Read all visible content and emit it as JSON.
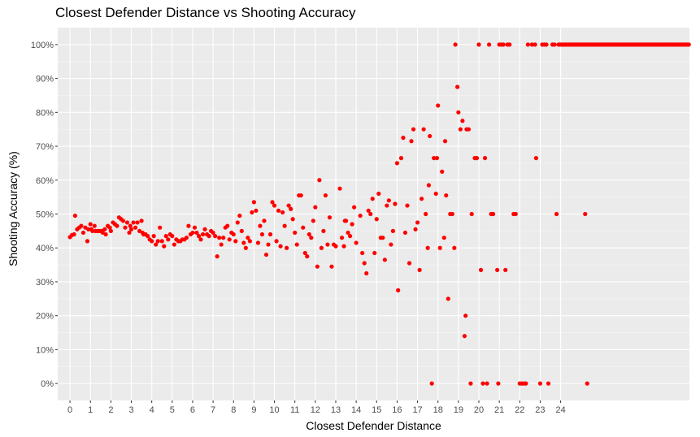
{
  "chart_data": {
    "type": "scatter",
    "title": "Closest Defender Distance vs Shooting Accuracy",
    "xlabel": "Closest Defender Distance",
    "ylabel": "Shooting Accuracy (%)",
    "xlim": [
      -0.6,
      30.3
    ],
    "ylim": [
      -5,
      105
    ],
    "x_ticks": [
      "0",
      "1",
      "2",
      "3",
      "4",
      "5",
      "6",
      "7",
      "8",
      "9",
      "10",
      "11",
      "12",
      "13",
      "14",
      "15",
      "16",
      "17",
      "18",
      "19",
      "20",
      "21",
      "22",
      "23",
      "24"
    ],
    "y_ticks": [
      "0%",
      "10%",
      "20%",
      "30%",
      "40%",
      "50%",
      "60%",
      "70%",
      "80%",
      "90%",
      "100%"
    ],
    "point_color": "#ff0000",
    "panel_background": "#ebebeb",
    "grid": true,
    "points": [
      [
        0.0,
        43.2
      ],
      [
        0.1,
        43.8
      ],
      [
        0.2,
        44.0
      ],
      [
        0.25,
        49.5
      ],
      [
        0.35,
        45.5
      ],
      [
        0.45,
        46.0
      ],
      [
        0.55,
        46.5
      ],
      [
        0.65,
        44.5
      ],
      [
        0.75,
        46.0
      ],
      [
        0.85,
        42.0
      ],
      [
        0.9,
        45.5
      ],
      [
        1.0,
        47.0
      ],
      [
        1.05,
        45.5
      ],
      [
        1.1,
        45.0
      ],
      [
        1.2,
        46.5
      ],
      [
        1.25,
        45.0
      ],
      [
        1.35,
        45.0
      ],
      [
        1.45,
        45.0
      ],
      [
        1.55,
        45.0
      ],
      [
        1.6,
        44.5
      ],
      [
        1.7,
        45.5
      ],
      [
        1.75,
        44.0
      ],
      [
        1.85,
        46.5
      ],
      [
        1.95,
        46.0
      ],
      [
        2.0,
        45.0
      ],
      [
        2.1,
        47.5
      ],
      [
        2.2,
        47.0
      ],
      [
        2.3,
        46.5
      ],
      [
        2.4,
        49.0
      ],
      [
        2.5,
        48.5
      ],
      [
        2.6,
        48.0
      ],
      [
        2.7,
        46.0
      ],
      [
        2.8,
        47.5
      ],
      [
        2.9,
        44.5
      ],
      [
        2.95,
        46.5
      ],
      [
        3.0,
        45.5
      ],
      [
        3.1,
        47.5
      ],
      [
        3.2,
        46.0
      ],
      [
        3.3,
        47.5
      ],
      [
        3.4,
        45.0
      ],
      [
        3.5,
        48.0
      ],
      [
        3.55,
        44.5
      ],
      [
        3.6,
        44.0
      ],
      [
        3.7,
        44.0
      ],
      [
        3.8,
        43.5
      ],
      [
        3.9,
        42.5
      ],
      [
        4.0,
        42.0
      ],
      [
        4.1,
        43.5
      ],
      [
        4.2,
        41.0
      ],
      [
        4.3,
        42.0
      ],
      [
        4.4,
        46.0
      ],
      [
        4.5,
        42.0
      ],
      [
        4.6,
        40.5
      ],
      [
        4.7,
        43.5
      ],
      [
        4.8,
        42.5
      ],
      [
        4.9,
        44.0
      ],
      [
        5.0,
        43.5
      ],
      [
        5.1,
        41.0
      ],
      [
        5.2,
        42.5
      ],
      [
        5.3,
        42.0
      ],
      [
        5.4,
        42.0
      ],
      [
        5.5,
        42.5
      ],
      [
        5.6,
        42.5
      ],
      [
        5.7,
        43.0
      ],
      [
        5.8,
        46.5
      ],
      [
        5.9,
        44.0
      ],
      [
        6.0,
        44.5
      ],
      [
        6.1,
        46.0
      ],
      [
        6.2,
        44.5
      ],
      [
        6.3,
        43.5
      ],
      [
        6.4,
        42.5
      ],
      [
        6.5,
        44.0
      ],
      [
        6.6,
        45.5
      ],
      [
        6.7,
        44.0
      ],
      [
        6.8,
        43.5
      ],
      [
        6.9,
        45.0
      ],
      [
        7.0,
        44.5
      ],
      [
        7.1,
        43.5
      ],
      [
        7.2,
        37.5
      ],
      [
        7.3,
        43.0
      ],
      [
        7.4,
        41.0
      ],
      [
        7.5,
        43.0
      ],
      [
        7.6,
        46.0
      ],
      [
        7.7,
        46.5
      ],
      [
        7.8,
        42.5
      ],
      [
        7.9,
        44.5
      ],
      [
        8.0,
        44.0
      ],
      [
        8.1,
        42.0
      ],
      [
        8.2,
        47.5
      ],
      [
        8.3,
        49.5
      ],
      [
        8.4,
        45.0
      ],
      [
        8.5,
        41.5
      ],
      [
        8.6,
        40.0
      ],
      [
        8.7,
        43.0
      ],
      [
        8.8,
        42.0
      ],
      [
        8.9,
        50.5
      ],
      [
        9.0,
        53.5
      ],
      [
        9.1,
        51.0
      ],
      [
        9.2,
        41.5
      ],
      [
        9.3,
        46.5
      ],
      [
        9.4,
        44.0
      ],
      [
        9.5,
        48.0
      ],
      [
        9.6,
        38.0
      ],
      [
        9.7,
        41.0
      ],
      [
        9.8,
        44.0
      ],
      [
        9.9,
        53.5
      ],
      [
        10.0,
        52.5
      ],
      [
        10.1,
        42.0
      ],
      [
        10.2,
        51.0
      ],
      [
        10.3,
        40.5
      ],
      [
        10.4,
        50.5
      ],
      [
        10.5,
        46.5
      ],
      [
        10.6,
        40.0
      ],
      [
        10.7,
        52.5
      ],
      [
        10.8,
        51.5
      ],
      [
        10.9,
        48.5
      ],
      [
        11.0,
        44.5
      ],
      [
        11.1,
        41.0
      ],
      [
        11.2,
        55.5
      ],
      [
        11.3,
        55.5
      ],
      [
        11.4,
        46.0
      ],
      [
        11.5,
        38.5
      ],
      [
        11.6,
        37.5
      ],
      [
        11.7,
        44.0
      ],
      [
        11.8,
        43.0
      ],
      [
        11.9,
        48.0
      ],
      [
        12.0,
        52.0
      ],
      [
        12.1,
        34.5
      ],
      [
        12.2,
        60.0
      ],
      [
        12.3,
        40.0
      ],
      [
        12.4,
        45.0
      ],
      [
        12.5,
        55.5
      ],
      [
        12.6,
        41.0
      ],
      [
        12.7,
        49.0
      ],
      [
        12.8,
        34.5
      ],
      [
        12.9,
        41.0
      ],
      [
        13.0,
        40.5
      ],
      [
        13.2,
        57.5
      ],
      [
        13.3,
        43.0
      ],
      [
        13.4,
        40.5
      ],
      [
        13.45,
        48.0
      ],
      [
        13.5,
        48.0
      ],
      [
        13.6,
        44.5
      ],
      [
        13.7,
        43.5
      ],
      [
        13.8,
        47.0
      ],
      [
        13.9,
        52.0
      ],
      [
        14.0,
        41.5
      ],
      [
        14.2,
        49.5
      ],
      [
        14.3,
        38.5
      ],
      [
        14.4,
        35.5
      ],
      [
        14.5,
        32.5
      ],
      [
        14.6,
        51.0
      ],
      [
        14.7,
        50.0
      ],
      [
        14.8,
        54.5
      ],
      [
        14.9,
        38.5
      ],
      [
        15.0,
        48.5
      ],
      [
        15.1,
        56.0
      ],
      [
        15.2,
        43.0
      ],
      [
        15.3,
        43.0
      ],
      [
        15.4,
        36.5
      ],
      [
        15.5,
        52.5
      ],
      [
        15.6,
        54.0
      ],
      [
        15.7,
        41.0
      ],
      [
        15.8,
        45.0
      ],
      [
        15.9,
        53.0
      ],
      [
        16.0,
        65.0
      ],
      [
        16.05,
        27.5
      ],
      [
        16.2,
        66.5
      ],
      [
        16.3,
        72.5
      ],
      [
        16.4,
        44.5
      ],
      [
        16.5,
        52.5
      ],
      [
        16.6,
        35.5
      ],
      [
        16.7,
        71.5
      ],
      [
        16.8,
        75.0
      ],
      [
        16.9,
        45.5
      ],
      [
        17.0,
        47.5
      ],
      [
        17.1,
        33.5
      ],
      [
        17.2,
        54.5
      ],
      [
        17.3,
        75.0
      ],
      [
        17.4,
        50.0
      ],
      [
        17.5,
        40.0
      ],
      [
        17.55,
        58.5
      ],
      [
        17.6,
        73.0
      ],
      [
        17.7,
        0.0
      ],
      [
        17.8,
        66.5
      ],
      [
        17.9,
        56.0
      ],
      [
        17.95,
        66.5
      ],
      [
        18.0,
        82.0
      ],
      [
        18.1,
        40.0
      ],
      [
        18.2,
        62.5
      ],
      [
        18.3,
        43.0
      ],
      [
        18.35,
        71.5
      ],
      [
        18.4,
        55.5
      ],
      [
        18.5,
        25.0
      ],
      [
        18.6,
        50.0
      ],
      [
        18.7,
        50.0
      ],
      [
        18.8,
        40.0
      ],
      [
        18.85,
        100.0
      ],
      [
        18.95,
        87.5
      ],
      [
        19.0,
        80.0
      ],
      [
        19.1,
        75.0
      ],
      [
        19.2,
        77.5
      ],
      [
        19.3,
        14.0
      ],
      [
        19.35,
        20.0
      ],
      [
        19.4,
        75.0
      ],
      [
        19.5,
        75.0
      ],
      [
        19.6,
        0.0
      ],
      [
        19.65,
        50.0
      ],
      [
        19.8,
        66.5
      ],
      [
        19.9,
        66.5
      ],
      [
        20.0,
        100.0
      ],
      [
        20.1,
        33.5
      ],
      [
        20.2,
        0.0
      ],
      [
        20.3,
        66.5
      ],
      [
        20.4,
        0.0
      ],
      [
        20.5,
        100.0
      ],
      [
        20.6,
        50.0
      ],
      [
        20.7,
        50.0
      ],
      [
        20.9,
        33.5
      ],
      [
        20.95,
        0.0
      ],
      [
        21.0,
        100.0
      ],
      [
        21.1,
        100.0
      ],
      [
        21.2,
        100.0
      ],
      [
        21.3,
        33.5
      ],
      [
        21.4,
        100.0
      ],
      [
        21.5,
        100.0
      ],
      [
        21.7,
        50.0
      ],
      [
        21.8,
        50.0
      ],
      [
        22.0,
        0.0
      ],
      [
        22.1,
        0.0
      ],
      [
        22.2,
        0.0
      ],
      [
        22.3,
        0.0
      ],
      [
        22.4,
        100.0
      ],
      [
        22.6,
        100.0
      ],
      [
        22.75,
        100.0
      ],
      [
        22.8,
        66.5
      ],
      [
        23.0,
        0.0
      ],
      [
        23.1,
        100.0
      ],
      [
        23.2,
        100.0
      ],
      [
        23.3,
        100.0
      ],
      [
        23.4,
        0.0
      ],
      [
        23.6,
        100.0
      ],
      [
        23.7,
        100.0
      ],
      [
        23.8,
        50.0
      ]
    ],
    "full_accuracy_range": [
      23.9,
      30.3
    ],
    "far_points": [
      [
        25.2,
        50.0
      ],
      [
        25.3,
        0.0
      ]
    ]
  }
}
